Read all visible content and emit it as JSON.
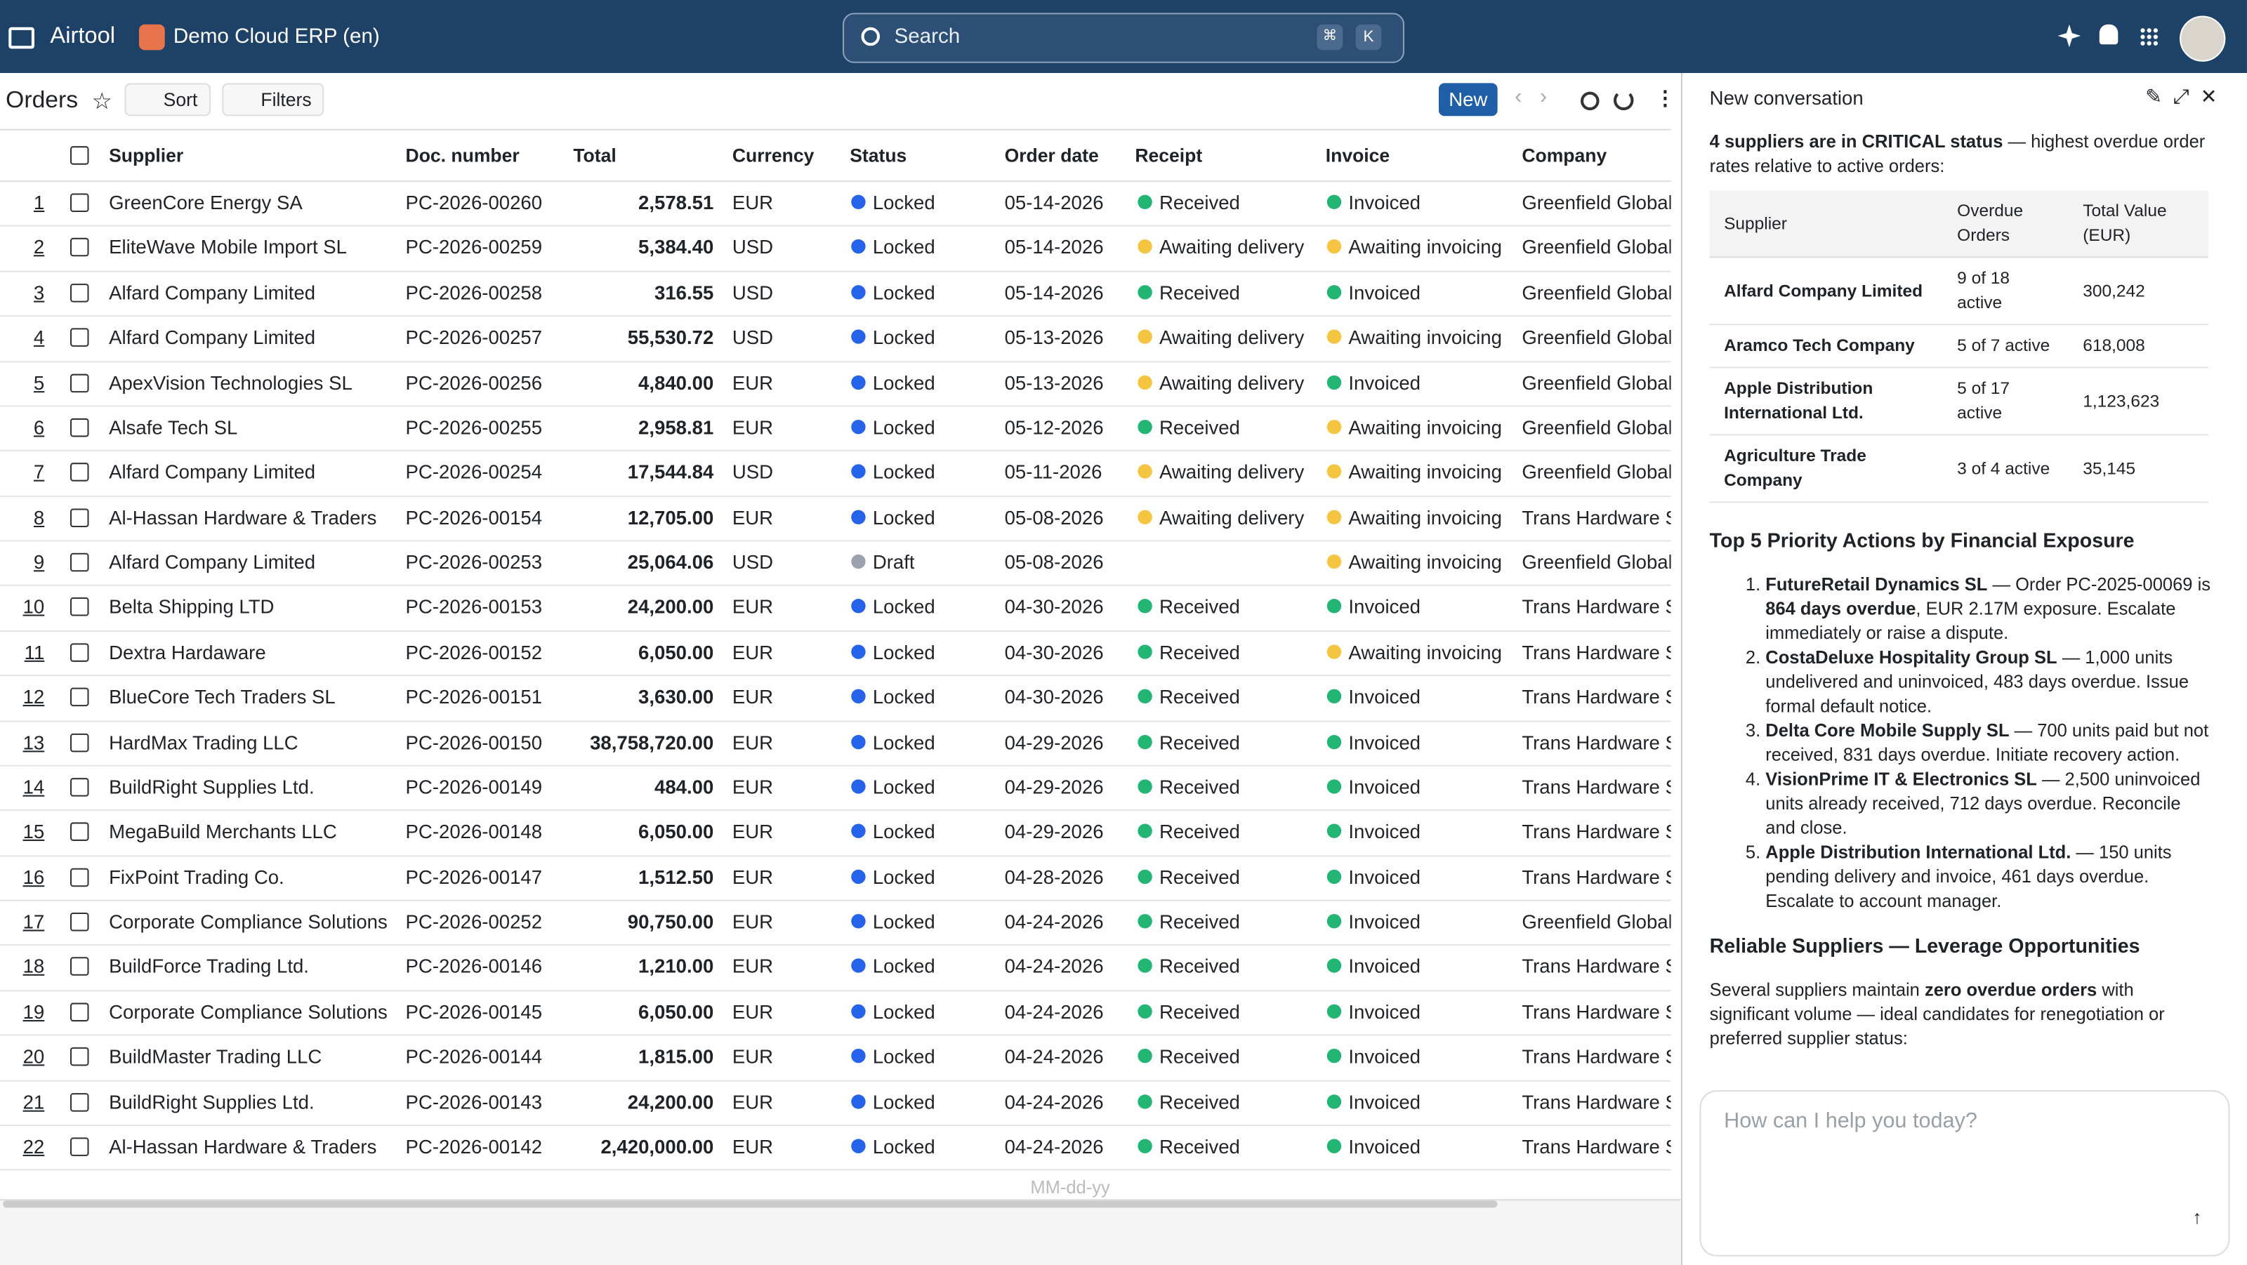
{
  "app": {
    "name": "Airtool",
    "workspace": "Demo Cloud ERP (en)",
    "search": "Search",
    "shortcut": [
      "⌘",
      "K"
    ]
  },
  "toolbar": {
    "title": "Orders",
    "sort": "Sort",
    "filters": "Filters",
    "new": "New"
  },
  "dot_colors": {
    "Locked": "#2563eb",
    "Draft": "#9ca3af",
    "Received": "#22b573",
    "Awaiting delivery": "#f5c542",
    "Invoiced": "#22b573",
    "Awaiting invoicing": "#f5c542"
  },
  "table": {
    "columns": [
      "Supplier",
      "Doc. number",
      "Total",
      "Currency",
      "Status",
      "Order date",
      "Receipt",
      "Invoice",
      "Company"
    ],
    "rows": [
      [
        "1",
        "GreenCore Energy SA",
        "PC-2026-00260",
        "2,578.51",
        "EUR",
        "Locked",
        "05-14-2026",
        "Received",
        "Invoiced",
        "Greenfield Global"
      ],
      [
        "2",
        "EliteWave Mobile Import SL",
        "PC-2026-00259",
        "5,384.40",
        "USD",
        "Locked",
        "05-14-2026",
        "Awaiting delivery",
        "Awaiting invoicing",
        "Greenfield Global"
      ],
      [
        "3",
        "Alfard Company Limited",
        "PC-2026-00258",
        "316.55",
        "USD",
        "Locked",
        "05-14-2026",
        "Received",
        "Invoiced",
        "Greenfield Global"
      ],
      [
        "4",
        "Alfard Company Limited",
        "PC-2026-00257",
        "55,530.72",
        "USD",
        "Locked",
        "05-13-2026",
        "Awaiting delivery",
        "Awaiting invoicing",
        "Greenfield Global"
      ],
      [
        "5",
        "ApexVision Technologies SL",
        "PC-2026-00256",
        "4,840.00",
        "EUR",
        "Locked",
        "05-13-2026",
        "Awaiting delivery",
        "Invoiced",
        "Greenfield Global"
      ],
      [
        "6",
        "Alsafe Tech SL",
        "PC-2026-00255",
        "2,958.81",
        "EUR",
        "Locked",
        "05-12-2026",
        "Received",
        "Awaiting invoicing",
        "Greenfield Global"
      ],
      [
        "7",
        "Alfard Company Limited",
        "PC-2026-00254",
        "17,544.84",
        "USD",
        "Locked",
        "05-11-2026",
        "Awaiting delivery",
        "Awaiting invoicing",
        "Greenfield Global"
      ],
      [
        "8",
        "Al-Hassan Hardware & Traders",
        "PC-2026-00154",
        "12,705.00",
        "EUR",
        "Locked",
        "05-08-2026",
        "Awaiting delivery",
        "Awaiting invoicing",
        "Trans Hardware S"
      ],
      [
        "9",
        "Alfard Company Limited",
        "PC-2026-00253",
        "25,064.06",
        "USD",
        "Draft",
        "05-08-2026",
        null,
        "Awaiting invoicing",
        "Greenfield Global"
      ],
      [
        "10",
        "Belta Shipping LTD",
        "PC-2026-00153",
        "24,200.00",
        "EUR",
        "Locked",
        "04-30-2026",
        "Received",
        "Invoiced",
        "Trans Hardware S"
      ],
      [
        "11",
        "Dextra Hardaware",
        "PC-2026-00152",
        "6,050.00",
        "EUR",
        "Locked",
        "04-30-2026",
        "Received",
        "Awaiting invoicing",
        "Trans Hardware S"
      ],
      [
        "12",
        "BlueCore Tech Traders SL",
        "PC-2026-00151",
        "3,630.00",
        "EUR",
        "Locked",
        "04-30-2026",
        "Received",
        "Invoiced",
        "Trans Hardware S"
      ],
      [
        "13",
        "HardMax Trading LLC",
        "PC-2026-00150",
        "38,758,720.00",
        "EUR",
        "Locked",
        "04-29-2026",
        "Received",
        "Invoiced",
        "Trans Hardware S"
      ],
      [
        "14",
        "BuildRight Supplies Ltd.",
        "PC-2026-00149",
        "484.00",
        "EUR",
        "Locked",
        "04-29-2026",
        "Received",
        "Invoiced",
        "Trans Hardware S"
      ],
      [
        "15",
        "MegaBuild Merchants LLC",
        "PC-2026-00148",
        "6,050.00",
        "EUR",
        "Locked",
        "04-29-2026",
        "Received",
        "Invoiced",
        "Trans Hardware S"
      ],
      [
        "16",
        "FixPoint Trading Co.",
        "PC-2026-00147",
        "1,512.50",
        "EUR",
        "Locked",
        "04-28-2026",
        "Received",
        "Invoiced",
        "Trans Hardware S"
      ],
      [
        "17",
        "Corporate Compliance Solutions",
        "PC-2026-00252",
        "90,750.00",
        "EUR",
        "Locked",
        "04-24-2026",
        "Received",
        "Invoiced",
        "Greenfield Global"
      ],
      [
        "18",
        "BuildForce Trading Ltd.",
        "PC-2026-00146",
        "1,210.00",
        "EUR",
        "Locked",
        "04-24-2026",
        "Received",
        "Invoiced",
        "Trans Hardware S"
      ],
      [
        "19",
        "Corporate Compliance Solutions",
        "PC-2026-00145",
        "6,050.00",
        "EUR",
        "Locked",
        "04-24-2026",
        "Received",
        "Invoiced",
        "Trans Hardware S"
      ],
      [
        "20",
        "BuildMaster Trading LLC",
        "PC-2026-00144",
        "1,815.00",
        "EUR",
        "Locked",
        "04-24-2026",
        "Received",
        "Invoiced",
        "Trans Hardware S"
      ],
      [
        "21",
        "BuildRight Supplies Ltd.",
        "PC-2026-00143",
        "24,200.00",
        "EUR",
        "Locked",
        "04-24-2026",
        "Received",
        "Invoiced",
        "Trans Hardware S"
      ],
      [
        "22",
        "Al-Hassan Hardware & Traders",
        "PC-2026-00142",
        "2,420,000.00",
        "EUR",
        "Locked",
        "04-24-2026",
        "Received",
        "Invoiced",
        "Trans Hardware S"
      ]
    ],
    "date_placeholder": "MM-dd-yy"
  },
  "chat": {
    "title": "New conversation",
    "intro": [
      {
        "t": "4 suppliers are in CRITICAL status",
        "b": true
      },
      {
        "t": " — highest overdue order rates relative to active orders:",
        "b": false
      }
    ],
    "table": {
      "columns": [
        "Supplier",
        "Overdue Orders",
        "Total Value (EUR)"
      ],
      "rows": [
        [
          "Alfard Company Limited",
          "9 of 18 active",
          "300,242"
        ],
        [
          "Aramco Tech Company",
          "5 of 7 active",
          "618,008"
        ],
        [
          "Apple Distribution International Ltd.",
          "5 of 17 active",
          "1,123,623"
        ],
        [
          "Agriculture Trade Company",
          "3 of 4 active",
          "35,145"
        ]
      ]
    },
    "heading1": "Top 5 Priority Actions by Financial Exposure",
    "actions": [
      [
        {
          "t": "FutureRetail Dynamics SL",
          "b": true
        },
        {
          "t": " — Order PC-2025-00069 is ",
          "b": false
        },
        {
          "t": "864 days overdue",
          "b": true
        },
        {
          "t": ", EUR 2.17M exposure. Escalate immediately or raise a dispute.",
          "b": false
        }
      ],
      [
        {
          "t": "CostaDeluxe Hospitality Group SL",
          "b": true
        },
        {
          "t": " — 1,000 units undelivered and uninvoiced, 483 days overdue. Issue formal default notice.",
          "b": false
        }
      ],
      [
        {
          "t": "Delta Core Mobile Supply SL",
          "b": true
        },
        {
          "t": " — 700 units paid but not received, 831 days overdue. Initiate recovery action.",
          "b": false
        }
      ],
      [
        {
          "t": "VisionPrime IT & Electronics SL",
          "b": true
        },
        {
          "t": " — 2,500 uninvoiced units already received, 712 days overdue. Reconcile and close.",
          "b": false
        }
      ],
      [
        {
          "t": "Apple Distribution International Ltd.",
          "b": true
        },
        {
          "t": " — 150 units pending delivery and invoice, 461 days overdue. Escalate to account manager.",
          "b": false
        }
      ]
    ],
    "heading2": "Reliable Suppliers — Leverage Opportunities",
    "outro": [
      {
        "t": "Several suppliers maintain ",
        "b": false
      },
      {
        "t": "zero overdue orders",
        "b": true
      },
      {
        "t": " with significant volume — ideal candidates for renegotiation or preferred supplier status:",
        "b": false
      }
    ],
    "placeholder": "How can I help you today?"
  }
}
